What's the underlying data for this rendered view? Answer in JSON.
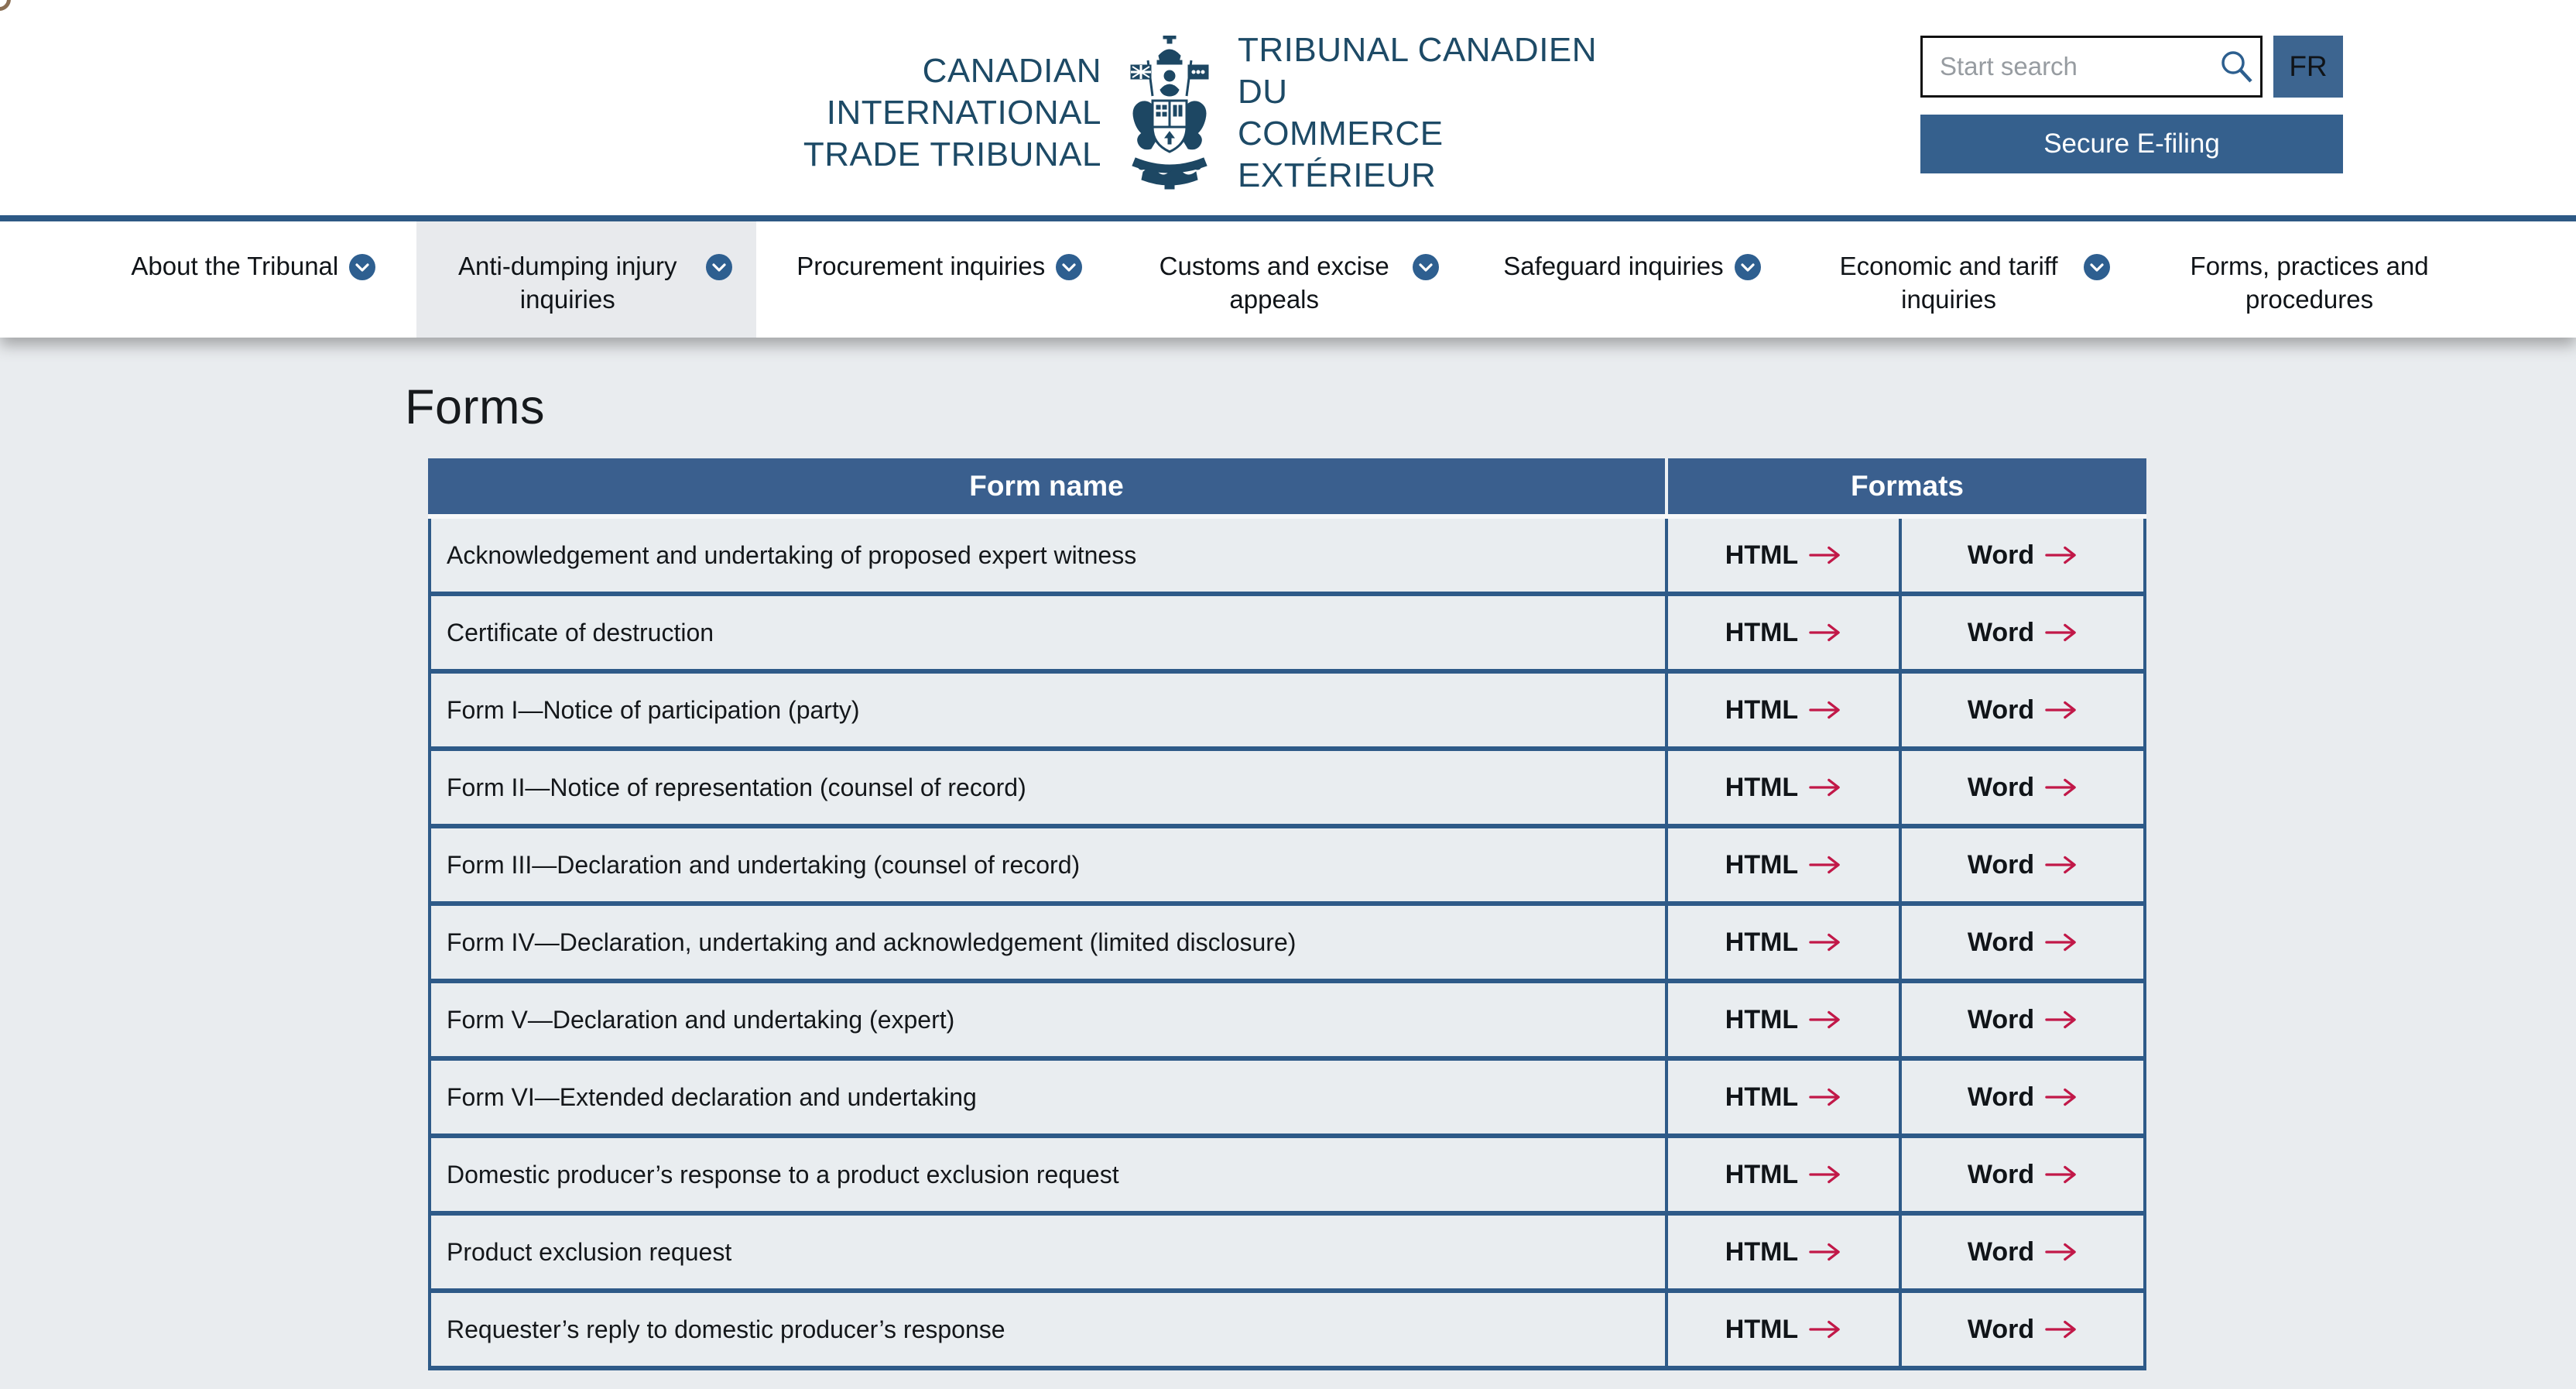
{
  "header": {
    "logo_left_line1": "CANADIAN INTERNATIONAL",
    "logo_left_line2": "TRADE TRIBUNAL",
    "logo_right_line1": "TRIBUNAL CANADIEN DU",
    "logo_right_line2": "COMMERCE EXTÉRIEUR",
    "search_placeholder": "Start search",
    "language_toggle_label": "FR",
    "efiling_label": "Secure E-filing"
  },
  "nav": {
    "items": [
      {
        "label": "About the Tribunal",
        "chevron": true,
        "active": false
      },
      {
        "label": "Anti-dumping injury inquiries",
        "chevron": true,
        "active": true
      },
      {
        "label": "Procurement inquiries",
        "chevron": true,
        "active": false
      },
      {
        "label": "Customs and excise appeals",
        "chevron": true,
        "active": false
      },
      {
        "label": "Safeguard inquiries",
        "chevron": true,
        "active": false
      },
      {
        "label": "Economic and tariff inquiries",
        "chevron": true,
        "active": false
      },
      {
        "label": "Forms, practices and procedures",
        "chevron": false,
        "active": false
      }
    ]
  },
  "page": {
    "title": "Forms"
  },
  "table": {
    "col_name_header": "Form name",
    "col_formats_header": "Formats",
    "rows": [
      {
        "name": "Acknowledgement and undertaking of proposed expert witness",
        "html_label": "HTML",
        "word_label": "Word"
      },
      {
        "name": "Certificate of destruction",
        "html_label": "HTML",
        "word_label": "Word"
      },
      {
        "name": "Form I—Notice of participation (party)",
        "html_label": "HTML",
        "word_label": "Word"
      },
      {
        "name": "Form II—Notice of representation (counsel of record)",
        "html_label": "HTML",
        "word_label": "Word"
      },
      {
        "name": "Form III—Declaration and undertaking (counsel of record)",
        "html_label": "HTML",
        "word_label": "Word"
      },
      {
        "name": "Form IV—Declaration, undertaking and acknowledgement (limited disclosure)",
        "html_label": "HTML",
        "word_label": "Word"
      },
      {
        "name": "Form V—Declaration and undertaking (expert)",
        "html_label": "HTML",
        "word_label": "Word"
      },
      {
        "name": "Form VI—Extended declaration and undertaking",
        "html_label": "HTML",
        "word_label": "Word"
      },
      {
        "name": "Domestic producer’s response to a product exclusion request",
        "html_label": "HTML",
        "word_label": "Word"
      },
      {
        "name": "Product exclusion request",
        "html_label": "HTML",
        "word_label": "Word"
      },
      {
        "name": "Requester’s reply to domestic producer’s response",
        "html_label": "HTML",
        "word_label": "Word"
      }
    ]
  },
  "colors": {
    "navy_text": "#1d4a66",
    "rule_blue": "#2d5a87",
    "table_header_blue": "#3a5f8e",
    "border_blue": "#2e5a88",
    "button_blue": "#35608d",
    "fr_button_blue": "#3d6590",
    "arrow_red": "#c11848",
    "page_background": "#e9ecef"
  }
}
